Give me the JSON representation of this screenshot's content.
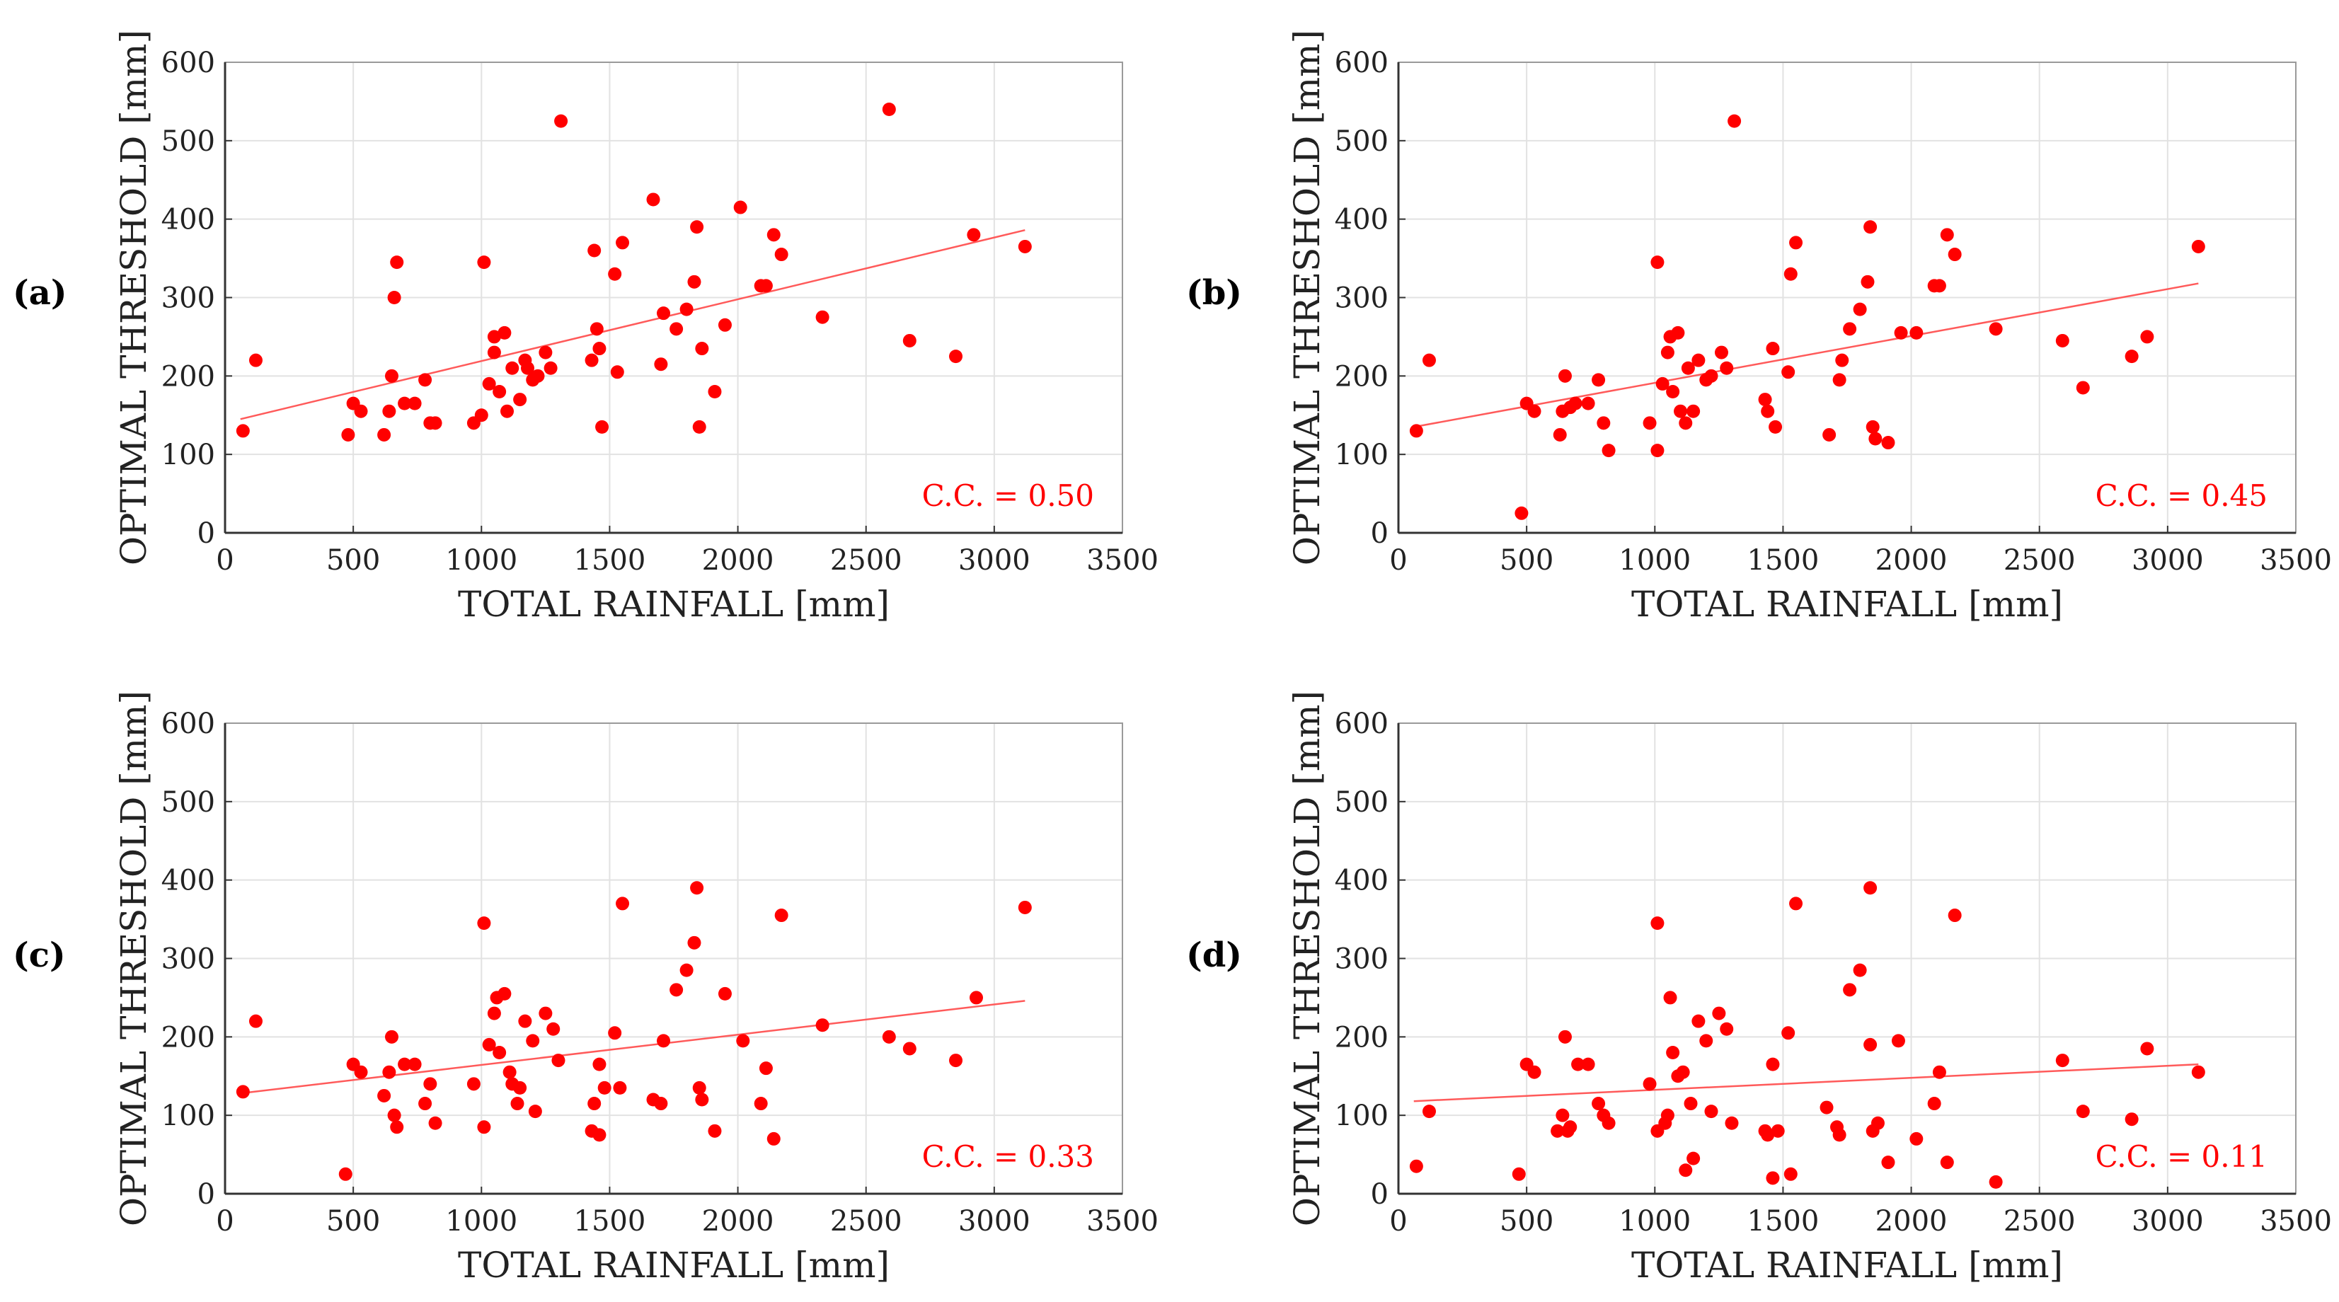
{
  "colors": {
    "marker": "#ff0000",
    "line": "#ff5a5a",
    "grid": "#e2e2e2",
    "axis": "#333333"
  },
  "chart_data": [
    {
      "panel": "(a)",
      "type": "scatter",
      "xlabel": "TOTAL RAINFALL [mm]",
      "ylabel": "OPTIMAL THRESHOLD [mm]",
      "xlim": [
        0,
        3500
      ],
      "ylim": [
        0,
        600
      ],
      "xticks": [
        "0",
        "500",
        "1000",
        "1500",
        "2000",
        "2500",
        "3000",
        "3500"
      ],
      "yticks": [
        "0",
        "100",
        "200",
        "300",
        "400",
        "500",
        "600"
      ],
      "grid": true,
      "annotation": "C.C. = 0.50",
      "trend": {
        "x": [
          60,
          3120
        ],
        "y": [
          145,
          386
        ]
      },
      "points": [
        [
          70,
          130
        ],
        [
          120,
          220
        ],
        [
          480,
          125
        ],
        [
          500,
          165
        ],
        [
          530,
          155
        ],
        [
          620,
          125
        ],
        [
          640,
          155
        ],
        [
          650,
          200
        ],
        [
          660,
          300
        ],
        [
          670,
          345
        ],
        [
          700,
          165
        ],
        [
          740,
          165
        ],
        [
          780,
          195
        ],
        [
          800,
          140
        ],
        [
          820,
          140
        ],
        [
          970,
          140
        ],
        [
          1000,
          150
        ],
        [
          1010,
          345
        ],
        [
          1030,
          190
        ],
        [
          1050,
          230
        ],
        [
          1050,
          250
        ],
        [
          1070,
          180
        ],
        [
          1090,
          255
        ],
        [
          1100,
          155
        ],
        [
          1120,
          210
        ],
        [
          1150,
          170
        ],
        [
          1170,
          220
        ],
        [
          1180,
          210
        ],
        [
          1200,
          195
        ],
        [
          1220,
          200
        ],
        [
          1250,
          230
        ],
        [
          1270,
          210
        ],
        [
          1310,
          525
        ],
        [
          1430,
          220
        ],
        [
          1440,
          360
        ],
        [
          1450,
          260
        ],
        [
          1460,
          235
        ],
        [
          1470,
          135
        ],
        [
          1520,
          330
        ],
        [
          1530,
          205
        ],
        [
          1550,
          370
        ],
        [
          1670,
          425
        ],
        [
          1700,
          215
        ],
        [
          1710,
          280
        ],
        [
          1760,
          260
        ],
        [
          1800,
          285
        ],
        [
          1830,
          320
        ],
        [
          1840,
          390
        ],
        [
          1850,
          135
        ],
        [
          1860,
          235
        ],
        [
          1910,
          180
        ],
        [
          1950,
          265
        ],
        [
          2010,
          415
        ],
        [
          2090,
          315
        ],
        [
          2110,
          315
        ],
        [
          2140,
          380
        ],
        [
          2170,
          355
        ],
        [
          2330,
          275
        ],
        [
          2590,
          540
        ],
        [
          2670,
          245
        ],
        [
          2850,
          225
        ],
        [
          2920,
          380
        ],
        [
          3120,
          365
        ]
      ]
    },
    {
      "panel": "(b)",
      "type": "scatter",
      "xlabel": "TOTAL RAINFALL [mm]",
      "ylabel": "OPTIMAL THRESHOLD [mm]",
      "xlim": [
        0,
        3500
      ],
      "ylim": [
        0,
        600
      ],
      "xticks": [
        "0",
        "500",
        "1000",
        "1500",
        "2000",
        "2500",
        "3000",
        "3500"
      ],
      "yticks": [
        "0",
        "100",
        "200",
        "300",
        "400",
        "500",
        "600"
      ],
      "grid": true,
      "annotation": "C.C. = 0.45",
      "trend": {
        "x": [
          60,
          3120
        ],
        "y": [
          135,
          318
        ]
      },
      "points": [
        [
          70,
          130
        ],
        [
          120,
          220
        ],
        [
          480,
          25
        ],
        [
          500,
          165
        ],
        [
          530,
          155
        ],
        [
          630,
          125
        ],
        [
          640,
          155
        ],
        [
          650,
          200
        ],
        [
          670,
          160
        ],
        [
          690,
          165
        ],
        [
          740,
          165
        ],
        [
          780,
          195
        ],
        [
          800,
          140
        ],
        [
          820,
          105
        ],
        [
          980,
          140
        ],
        [
          1010,
          345
        ],
        [
          1010,
          105
        ],
        [
          1030,
          190
        ],
        [
          1050,
          230
        ],
        [
          1060,
          250
        ],
        [
          1070,
          180
        ],
        [
          1090,
          255
        ],
        [
          1100,
          155
        ],
        [
          1120,
          140
        ],
        [
          1130,
          210
        ],
        [
          1150,
          155
        ],
        [
          1170,
          220
        ],
        [
          1200,
          195
        ],
        [
          1220,
          200
        ],
        [
          1260,
          230
        ],
        [
          1280,
          210
        ],
        [
          1310,
          525
        ],
        [
          1430,
          170
        ],
        [
          1440,
          155
        ],
        [
          1460,
          235
        ],
        [
          1470,
          135
        ],
        [
          1520,
          205
        ],
        [
          1530,
          330
        ],
        [
          1550,
          370
        ],
        [
          1680,
          125
        ],
        [
          1720,
          195
        ],
        [
          1730,
          220
        ],
        [
          1760,
          260
        ],
        [
          1800,
          285
        ],
        [
          1830,
          320
        ],
        [
          1840,
          390
        ],
        [
          1850,
          135
        ],
        [
          1860,
          120
        ],
        [
          1910,
          115
        ],
        [
          1960,
          255
        ],
        [
          2020,
          255
        ],
        [
          2090,
          315
        ],
        [
          2110,
          315
        ],
        [
          2140,
          380
        ],
        [
          2170,
          355
        ],
        [
          2330,
          260
        ],
        [
          2590,
          245
        ],
        [
          2670,
          185
        ],
        [
          2860,
          225
        ],
        [
          2920,
          250
        ],
        [
          3120,
          365
        ]
      ]
    },
    {
      "panel": "(c)",
      "type": "scatter",
      "xlabel": "TOTAL RAINFALL [mm]",
      "ylabel": "OPTIMAL THRESHOLD [mm]",
      "xlim": [
        0,
        3500
      ],
      "ylim": [
        0,
        600
      ],
      "xticks": [
        "0",
        "500",
        "1000",
        "1500",
        "2000",
        "2500",
        "3000",
        "3500"
      ],
      "yticks": [
        "0",
        "100",
        "200",
        "300",
        "400",
        "500",
        "600"
      ],
      "grid": true,
      "annotation": "C.C. = 0.33",
      "trend": {
        "x": [
          60,
          3120
        ],
        "y": [
          128,
          246
        ]
      },
      "points": [
        [
          70,
          130
        ],
        [
          120,
          220
        ],
        [
          470,
          25
        ],
        [
          500,
          165
        ],
        [
          530,
          155
        ],
        [
          620,
          125
        ],
        [
          640,
          155
        ],
        [
          650,
          200
        ],
        [
          660,
          100
        ],
        [
          670,
          85
        ],
        [
          700,
          165
        ],
        [
          740,
          165
        ],
        [
          780,
          115
        ],
        [
          800,
          140
        ],
        [
          820,
          90
        ],
        [
          970,
          140
        ],
        [
          1010,
          345
        ],
        [
          1010,
          85
        ],
        [
          1030,
          190
        ],
        [
          1050,
          230
        ],
        [
          1060,
          250
        ],
        [
          1070,
          180
        ],
        [
          1090,
          255
        ],
        [
          1110,
          155
        ],
        [
          1120,
          140
        ],
        [
          1140,
          115
        ],
        [
          1150,
          135
        ],
        [
          1170,
          220
        ],
        [
          1200,
          195
        ],
        [
          1210,
          105
        ],
        [
          1250,
          230
        ],
        [
          1280,
          210
        ],
        [
          1300,
          170
        ],
        [
          1430,
          80
        ],
        [
          1440,
          115
        ],
        [
          1460,
          75
        ],
        [
          1460,
          165
        ],
        [
          1480,
          135
        ],
        [
          1520,
          205
        ],
        [
          1540,
          135
        ],
        [
          1550,
          370
        ],
        [
          1670,
          120
        ],
        [
          1700,
          115
        ],
        [
          1710,
          195
        ],
        [
          1760,
          260
        ],
        [
          1800,
          285
        ],
        [
          1830,
          320
        ],
        [
          1840,
          390
        ],
        [
          1850,
          135
        ],
        [
          1860,
          120
        ],
        [
          1910,
          80
        ],
        [
          1950,
          255
        ],
        [
          2020,
          195
        ],
        [
          2090,
          115
        ],
        [
          2110,
          160
        ],
        [
          2140,
          70
        ],
        [
          2170,
          355
        ],
        [
          2330,
          215
        ],
        [
          2590,
          200
        ],
        [
          2670,
          185
        ],
        [
          2850,
          170
        ],
        [
          2930,
          250
        ],
        [
          3120,
          365
        ]
      ]
    },
    {
      "panel": "(d)",
      "type": "scatter",
      "xlabel": "TOTAL RAINFALL [mm]",
      "ylabel": "OPTIMAL THRESHOLD [mm]",
      "xlim": [
        0,
        3500
      ],
      "ylim": [
        0,
        600
      ],
      "xticks": [
        "0",
        "500",
        "1000",
        "1500",
        "2000",
        "2500",
        "3000",
        "3500"
      ],
      "yticks": [
        "0",
        "100",
        "200",
        "300",
        "400",
        "500",
        "600"
      ],
      "grid": true,
      "annotation": "C.C. = 0.11",
      "trend": {
        "x": [
          60,
          3120
        ],
        "y": [
          118,
          165
        ]
      },
      "points": [
        [
          70,
          35
        ],
        [
          120,
          105
        ],
        [
          470,
          25
        ],
        [
          500,
          165
        ],
        [
          530,
          155
        ],
        [
          620,
          80
        ],
        [
          640,
          100
        ],
        [
          650,
          200
        ],
        [
          660,
          80
        ],
        [
          670,
          85
        ],
        [
          700,
          165
        ],
        [
          740,
          165
        ],
        [
          780,
          115
        ],
        [
          800,
          100
        ],
        [
          820,
          90
        ],
        [
          980,
          140
        ],
        [
          1010,
          345
        ],
        [
          1010,
          80
        ],
        [
          1040,
          90
        ],
        [
          1050,
          100
        ],
        [
          1060,
          250
        ],
        [
          1070,
          180
        ],
        [
          1090,
          150
        ],
        [
          1110,
          155
        ],
        [
          1120,
          30
        ],
        [
          1140,
          115
        ],
        [
          1150,
          45
        ],
        [
          1170,
          220
        ],
        [
          1200,
          195
        ],
        [
          1220,
          105
        ],
        [
          1250,
          230
        ],
        [
          1280,
          210
        ],
        [
          1300,
          90
        ],
        [
          1430,
          80
        ],
        [
          1440,
          75
        ],
        [
          1460,
          165
        ],
        [
          1460,
          20
        ],
        [
          1480,
          80
        ],
        [
          1520,
          205
        ],
        [
          1530,
          25
        ],
        [
          1550,
          370
        ],
        [
          1670,
          110
        ],
        [
          1710,
          85
        ],
        [
          1720,
          75
        ],
        [
          1760,
          260
        ],
        [
          1800,
          285
        ],
        [
          1840,
          390
        ],
        [
          1840,
          190
        ],
        [
          1850,
          80
        ],
        [
          1870,
          90
        ],
        [
          1910,
          40
        ],
        [
          1950,
          195
        ],
        [
          2020,
          70
        ],
        [
          2090,
          115
        ],
        [
          2110,
          155
        ],
        [
          2140,
          40
        ],
        [
          2170,
          355
        ],
        [
          2330,
          15
        ],
        [
          2590,
          170
        ],
        [
          2670,
          105
        ],
        [
          2860,
          95
        ],
        [
          2920,
          185
        ],
        [
          3120,
          155
        ]
      ]
    }
  ]
}
